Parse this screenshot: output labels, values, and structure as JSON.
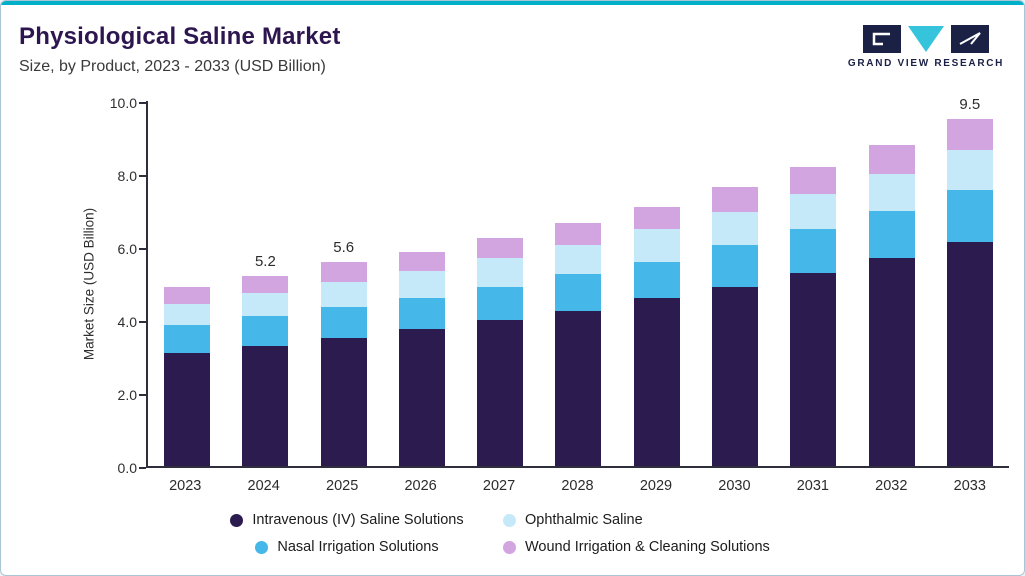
{
  "header": {
    "title": "Physiological Saline Market",
    "subtitle": "Size, by Product, 2023 - 2033 (USD Billion)",
    "logo_text": "GRAND VIEW RESEARCH"
  },
  "colors": {
    "accent_top": "#00AFC8",
    "title": "#2D1650",
    "axis": "#2E2E3D",
    "logo_navy": "#1B2145",
    "logo_cyan": "#35C4DC"
  },
  "chart_data": {
    "type": "bar",
    "stacked": true,
    "title": "Physiological Saline Market",
    "subtitle": "Size, by Product, 2023 - 2033 (USD Billion)",
    "ylabel": "Market Size (USD Billion)",
    "xlabel": "",
    "ylim": [
      0,
      10
    ],
    "yticks": [
      "0.0",
      "2.0",
      "4.0",
      "6.0",
      "8.0",
      "10.0"
    ],
    "grid": false,
    "legend_position": "bottom",
    "categories": [
      "2023",
      "2024",
      "2025",
      "2026",
      "2027",
      "2028",
      "2029",
      "2030",
      "2031",
      "2032",
      "2033"
    ],
    "bar_value_labels": [
      "",
      "5.2",
      "5.6",
      "",
      "",
      "",
      "",
      "",
      "",
      "",
      "9.5"
    ],
    "series": [
      {
        "name": "Intravenous (IV) Saline Solutions",
        "color": "#2B1B4E",
        "values": [
          3.1,
          3.3,
          3.5,
          3.75,
          4.0,
          4.25,
          4.6,
          4.9,
          5.3,
          5.7,
          6.15
        ]
      },
      {
        "name": "Nasal Irrigation Solutions",
        "color": "#45B7E8",
        "values": [
          0.75,
          0.8,
          0.85,
          0.85,
          0.9,
          1.0,
          1.0,
          1.15,
          1.2,
          1.3,
          1.4
        ]
      },
      {
        "name": "Ophthalmic Saline",
        "color": "#C6E9FA",
        "values": [
          0.6,
          0.65,
          0.7,
          0.75,
          0.8,
          0.8,
          0.9,
          0.9,
          0.95,
          1.0,
          1.1
        ]
      },
      {
        "name": "Wound Irrigation & Cleaning Solutions",
        "color": "#D3A5E0",
        "values": [
          0.45,
          0.45,
          0.55,
          0.5,
          0.55,
          0.6,
          0.6,
          0.7,
          0.75,
          0.8,
          0.85
        ]
      }
    ],
    "legend_rows": [
      [
        0,
        2
      ],
      [
        1,
        3
      ]
    ],
    "totals": [
      4.9,
      5.2,
      5.6,
      5.85,
      6.25,
      6.65,
      7.1,
      7.65,
      8.2,
      8.8,
      9.5
    ]
  }
}
